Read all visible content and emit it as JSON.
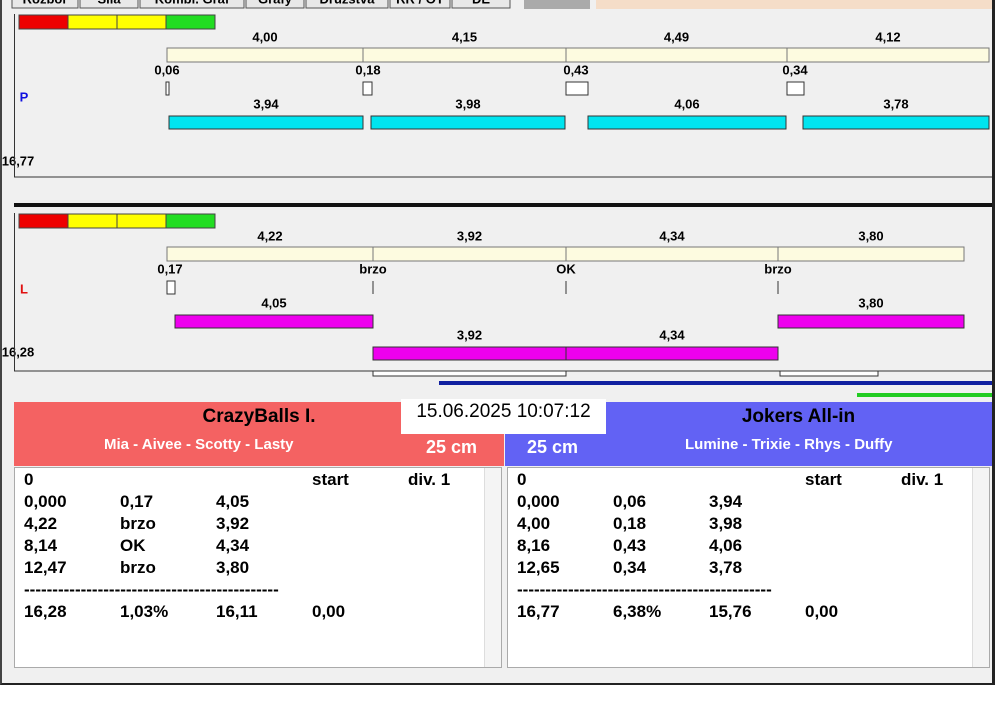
{
  "tabs": [
    "Rozbor",
    "Síla",
    "Kombi. Graf",
    "Grafy",
    "Družstva",
    "RR / OT",
    "DE"
  ],
  "lanes": [
    {
      "letter": "P",
      "total": "16,77",
      "splits": [
        "4,00",
        "4,15",
        "4,49",
        "4,12"
      ],
      "reactions": [
        "0,06",
        "0,18",
        "0,43",
        "0,34"
      ],
      "runs": [
        "3,94",
        "3,98",
        "4,06",
        "3,78"
      ]
    },
    {
      "letter": "L",
      "total": "16,28",
      "splits": [
        "4,22",
        "3,92",
        "4,34",
        "3,80"
      ],
      "reactions": [
        "0,17",
        "brzo",
        "OK",
        "brzo"
      ],
      "runs": [
        "4,05",
        "3,92",
        "4,34",
        "3,80"
      ]
    }
  ],
  "datetime": "15.06.2025 10:07:12",
  "teams": [
    {
      "name": "CrazyBalls I.",
      "members": "Mia - Aivee - Scotty - Lasty",
      "distance": "25 cm",
      "header": {
        "lane": "0",
        "start": "start",
        "division": "div. 1"
      },
      "rows": [
        [
          "0,000",
          "0,17",
          "4,05"
        ],
        [
          "4,22",
          "brzo",
          "3,92"
        ],
        [
          "8,14",
          "OK",
          "4,34"
        ],
        [
          "12,47",
          "brzo",
          "3,80"
        ]
      ],
      "separator": "---------------------------------------------",
      "total": [
        "16,28",
        "1,03%",
        "16,11",
        "0,00"
      ]
    },
    {
      "name": "Jokers All-in",
      "members": "Lumine - Trixie - Rhys - Duffy",
      "distance": "25 cm",
      "header": {
        "lane": "0",
        "start": "start",
        "division": "div. 1"
      },
      "rows": [
        [
          "0,000",
          "0,06",
          "3,94"
        ],
        [
          "4,00",
          "0,18",
          "3,98"
        ],
        [
          "8,16",
          "0,43",
          "4,06"
        ],
        [
          "12,65",
          "0,34",
          "3,78"
        ]
      ],
      "separator": "---------------------------------------------",
      "total": [
        "16,77",
        "6,38%",
        "15,76",
        "0,00"
      ]
    }
  ]
}
